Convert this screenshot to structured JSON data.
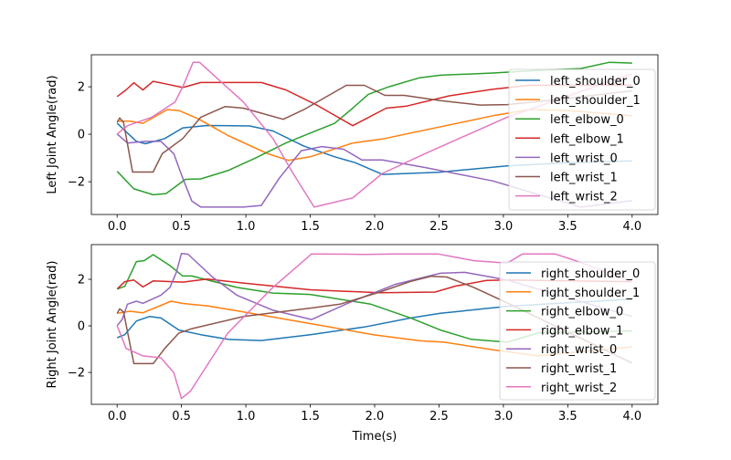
{
  "chart_data": [
    {
      "type": "line",
      "ylabel": "Left Joint Angle(rad)",
      "xlabel": "",
      "xlim": [
        -0.2,
        4.2
      ],
      "ylim": [
        -3.38,
        3.35
      ],
      "xticks": [
        "0.0",
        "0.5",
        "1.0",
        "1.5",
        "2.0",
        "2.5",
        "3.0",
        "3.5",
        "4.0"
      ],
      "yticks": [
        "-2",
        "0",
        "2"
      ],
      "legend": "right",
      "grid": false,
      "series": [
        {
          "name": "left_shoulder_0",
          "color": "#1f77b4",
          "x": [
            0,
            0.15,
            0.22,
            0.37,
            0.51,
            0.7,
            1.03,
            1.21,
            1.45,
            1.69,
            1.85,
            2.06,
            2.5,
            3.03,
            3.5,
            4.0
          ],
          "y": [
            0.46,
            -0.3,
            -0.4,
            -0.18,
            0.27,
            0.37,
            0.35,
            0.14,
            -0.5,
            -0.95,
            -1.2,
            -1.69,
            -1.6,
            -1.33,
            -1.2,
            -1.12
          ]
        },
        {
          "name": "left_shoulder_1",
          "color": "#ff7f0e",
          "x": [
            0,
            0.1,
            0.2,
            0.39,
            0.48,
            0.63,
            0.86,
            1.17,
            1.33,
            1.5,
            1.83,
            2.06,
            2.92,
            3.2,
            3.5,
            4.0
          ],
          "y": [
            0.55,
            0.55,
            0.46,
            1.04,
            1.0,
            0.65,
            -0.05,
            -0.82,
            -1.1,
            -0.95,
            -0.37,
            -0.2,
            0.78,
            1.04,
            1.0,
            0.78
          ]
        },
        {
          "name": "left_elbow_0",
          "color": "#2ca02c",
          "x": [
            0,
            0.13,
            0.28,
            0.38,
            0.53,
            0.65,
            0.86,
            1.07,
            1.31,
            1.5,
            1.69,
            1.83,
            1.95,
            2.11,
            2.35,
            2.51,
            2.92,
            3.3,
            3.6,
            3.82,
            4.0
          ],
          "y": [
            -1.56,
            -2.3,
            -2.55,
            -2.5,
            -1.9,
            -1.88,
            -1.53,
            -1.01,
            -0.37,
            0.05,
            0.46,
            1.1,
            1.68,
            2.0,
            2.38,
            2.49,
            2.58,
            2.7,
            2.77,
            3.03,
            3.0
          ]
        },
        {
          "name": "left_elbow_1",
          "color": "#d62728",
          "x": [
            0,
            0.07,
            0.13,
            0.2,
            0.28,
            0.37,
            0.51,
            0.65,
            1.12,
            1.31,
            1.55,
            1.83,
            2.09,
            2.25,
            2.58,
            2.92,
            3.2,
            4.0
          ],
          "y": [
            1.59,
            1.87,
            2.17,
            1.87,
            2.23,
            2.13,
            1.97,
            2.18,
            2.18,
            1.87,
            1.23,
            0.36,
            1.1,
            1.19,
            1.62,
            1.9,
            2.06,
            2.07
          ]
        },
        {
          "name": "left_wrist_0",
          "color": "#9467bd",
          "x": [
            0,
            0.08,
            0.22,
            0.34,
            0.44,
            0.51,
            0.58,
            0.65,
            0.98,
            1.12,
            1.26,
            1.43,
            1.59,
            1.76,
            1.9,
            2.06,
            2.39,
            2.92,
            3.6,
            4.0
          ],
          "y": [
            0.01,
            -0.37,
            -0.3,
            -0.3,
            -0.82,
            -1.85,
            -2.81,
            -3.07,
            -3.07,
            -3.0,
            -1.85,
            -0.69,
            -0.52,
            -0.63,
            -1.08,
            -1.08,
            -1.4,
            -1.97,
            -3.07,
            -2.8
          ]
        },
        {
          "name": "left_wrist_1",
          "color": "#8c564b",
          "x": [
            0,
            0.02,
            0.05,
            0.12,
            0.28,
            0.35,
            0.51,
            0.65,
            0.84,
            0.98,
            1.29,
            1.45,
            1.78,
            1.92,
            2.08,
            2.23,
            2.51,
            2.82,
            3.03,
            3.4,
            4.0
          ],
          "y": [
            0.5,
            0.69,
            0.5,
            -1.59,
            -1.59,
            -0.82,
            -0.18,
            0.72,
            1.17,
            1.1,
            0.63,
            1.04,
            2.06,
            2.06,
            1.64,
            1.64,
            1.42,
            1.23,
            1.25,
            1.45,
            1.83
          ]
        },
        {
          "name": "left_wrist_2",
          "color": "#e377c2",
          "x": [
            0,
            0.08,
            0.27,
            0.45,
            0.51,
            0.59,
            0.64,
            0.98,
            1.21,
            1.36,
            1.53,
            1.83,
            2.06,
            2.39,
            3.03,
            4.0
          ],
          "y": [
            0.01,
            0.36,
            0.72,
            1.36,
            2.0,
            3.03,
            3.03,
            1.36,
            -0.18,
            -1.59,
            -3.07,
            -2.68,
            -1.65,
            -0.82,
            0.72,
            2.55
          ]
        }
      ]
    },
    {
      "type": "line",
      "ylabel": "Right Joint Angle(rad)",
      "xlabel": "Time(s)",
      "xlim": [
        -0.2,
        4.2
      ],
      "ylim": [
        -3.37,
        3.49
      ],
      "xticks": [
        "0.0",
        "0.5",
        "1.0",
        "1.5",
        "2.0",
        "2.5",
        "3.0",
        "3.5",
        "4.0"
      ],
      "yticks": [
        "-2",
        "0",
        "2"
      ],
      "legend": "right",
      "grid": false,
      "series": [
        {
          "name": "right_shoulder_0",
          "color": "#1f77b4",
          "x": [
            0,
            0.06,
            0.15,
            0.25,
            0.34,
            0.48,
            0.65,
            0.86,
            1.12,
            1.5,
            1.92,
            2.28,
            2.51,
            3.03,
            4.0
          ],
          "y": [
            -0.51,
            -0.38,
            0.21,
            0.4,
            0.34,
            -0.18,
            -0.38,
            -0.58,
            -0.63,
            -0.38,
            -0.05,
            0.34,
            0.54,
            0.84,
            1.15
          ]
        },
        {
          "name": "right_shoulder_1",
          "color": "#ff7f0e",
          "x": [
            0,
            0.1,
            0.2,
            0.42,
            0.51,
            0.7,
            0.98,
            1.5,
            1.99,
            2.35,
            2.54,
            2.92,
            3.27,
            4.0
          ],
          "y": [
            0.54,
            0.63,
            0.56,
            1.06,
            0.96,
            0.86,
            0.6,
            0.1,
            -0.38,
            -0.64,
            -0.7,
            -1.03,
            -1.29,
            -0.9
          ]
        },
        {
          "name": "right_elbow_0",
          "color": "#2ca02c",
          "x": [
            0,
            0.06,
            0.15,
            0.21,
            0.28,
            0.41,
            0.51,
            0.58,
            0.93,
            1.21,
            1.5,
            1.97,
            2.28,
            2.51,
            2.75,
            3.03,
            3.27,
            4.0
          ],
          "y": [
            1.58,
            1.7,
            2.76,
            2.8,
            3.06,
            2.59,
            2.14,
            2.14,
            1.65,
            1.41,
            1.35,
            0.93,
            0.34,
            -0.18,
            -0.58,
            -0.7,
            -0.31,
            -0.22
          ]
        },
        {
          "name": "right_elbow_1",
          "color": "#d62728",
          "x": [
            0,
            0.06,
            0.13,
            0.2,
            0.28,
            0.51,
            0.7,
            0.98,
            1.5,
            2.04,
            2.47,
            2.63,
            2.87,
            3.03,
            4.0
          ],
          "y": [
            1.58,
            1.9,
            1.97,
            1.67,
            1.93,
            1.88,
            2.01,
            1.84,
            1.55,
            1.42,
            1.45,
            1.71,
            1.95,
            1.97,
            1.9
          ]
        },
        {
          "name": "right_wrist_0",
          "color": "#9467bd",
          "x": [
            0,
            0.04,
            0.08,
            0.15,
            0.2,
            0.34,
            0.41,
            0.46,
            0.5,
            0.55,
            0.74,
            0.93,
            1.21,
            1.51,
            1.8,
            2.16,
            2.51,
            2.7,
            3.03,
            4.0
          ],
          "y": [
            0.01,
            0.28,
            0.93,
            1.06,
            0.97,
            1.32,
            1.65,
            2.3,
            3.11,
            3.08,
            2.1,
            1.32,
            0.67,
            0.27,
            0.99,
            1.78,
            2.26,
            2.3,
            1.97,
            0.4
          ]
        },
        {
          "name": "right_wrist_1",
          "color": "#8c564b",
          "x": [
            0,
            0.02,
            0.05,
            0.13,
            0.28,
            0.37,
            0.48,
            0.58,
            0.98,
            1.5,
            1.73,
            2.04,
            2.28,
            2.44,
            2.56,
            2.77,
            3.03,
            4.0
          ],
          "y": [
            0.54,
            0.73,
            0.6,
            -1.62,
            -1.62,
            -0.97,
            -0.31,
            -0.12,
            0.4,
            0.76,
            0.93,
            1.45,
            1.91,
            2.13,
            2.1,
            1.65,
            0.99,
            -1.6
          ]
        },
        {
          "name": "right_wrist_2",
          "color": "#e377c2",
          "x": [
            0,
            0.07,
            0.2,
            0.34,
            0.44,
            0.5,
            0.57,
            0.86,
            1.21,
            1.51,
            1.92,
            2.16,
            2.49,
            2.77,
            3.03,
            3.15,
            3.4,
            3.55,
            4.0
          ],
          "y": [
            0.01,
            -0.97,
            -1.29,
            -1.37,
            -2.01,
            -3.12,
            -2.8,
            -0.31,
            1.65,
            3.09,
            3.07,
            3.09,
            3.09,
            2.8,
            2.7,
            3.09,
            3.09,
            2.82,
            1.91
          ]
        }
      ]
    }
  ]
}
